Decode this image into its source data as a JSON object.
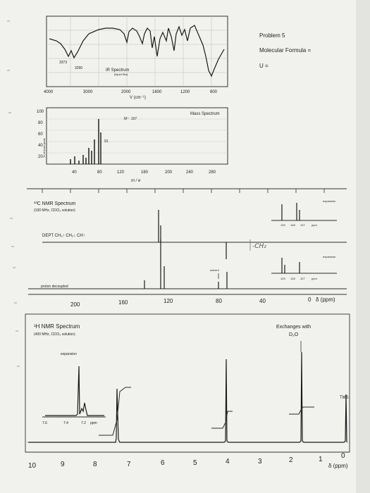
{
  "problem": {
    "title": "Problem 5",
    "formula_label": "Molecular Formula =",
    "u_label": "U ="
  },
  "ir": {
    "title": "IR Spectrum",
    "subtitle": "(liquid film)",
    "peak_labels": [
      "3373",
      "3290"
    ],
    "x_ticks": [
      "4000",
      "3000",
      "2000",
      "1600",
      "1200",
      "800"
    ],
    "x_label": "V (cm⁻¹)"
  },
  "ms": {
    "title": "Mass Spectrum",
    "y_label": "% of base peak",
    "y_ticks": [
      "100",
      "80",
      "60",
      "40",
      "20"
    ],
    "x_ticks": [
      "40",
      "80",
      "120",
      "160",
      "200",
      "240",
      "280"
    ],
    "x_label": "m / e",
    "mplus_label": "M⁺· 107",
    "peak91_label": "91"
  },
  "c13": {
    "title": "¹³C NMR Spectrum",
    "subtitle": "(100 MHz, CDCl₃ solution)",
    "dept_label": "DEPT  CH₃↑  CH₂↓  CH↑",
    "expansion_label": "expansion",
    "expansion_ticks": [
      "129",
      "128",
      "127",
      "ppm"
    ],
    "solvent_label": "solvent",
    "decoupled_label": "proton decoupled",
    "handwritten": "-CH₂",
    "x_ticks": [
      "200",
      "160",
      "120",
      "80",
      "40",
      "0"
    ],
    "x_unit": "δ (ppm)"
  },
  "h1": {
    "title": "¹H NMR Spectrum",
    "subtitle": "(400 MHz, CDCl₃ solution)",
    "expansion_label": "expansion",
    "expansion_ticks": [
      "7.6",
      "7.4",
      "7.2",
      "ppm"
    ],
    "exchange_label": "Exchanges with",
    "exchange_label2": "D₂O",
    "tms_label": "TMS",
    "x_ticks": [
      "10",
      "9",
      "8",
      "7",
      "6",
      "5",
      "4",
      "3",
      "2",
      "1",
      "0"
    ],
    "x_unit": "δ (ppm)"
  }
}
